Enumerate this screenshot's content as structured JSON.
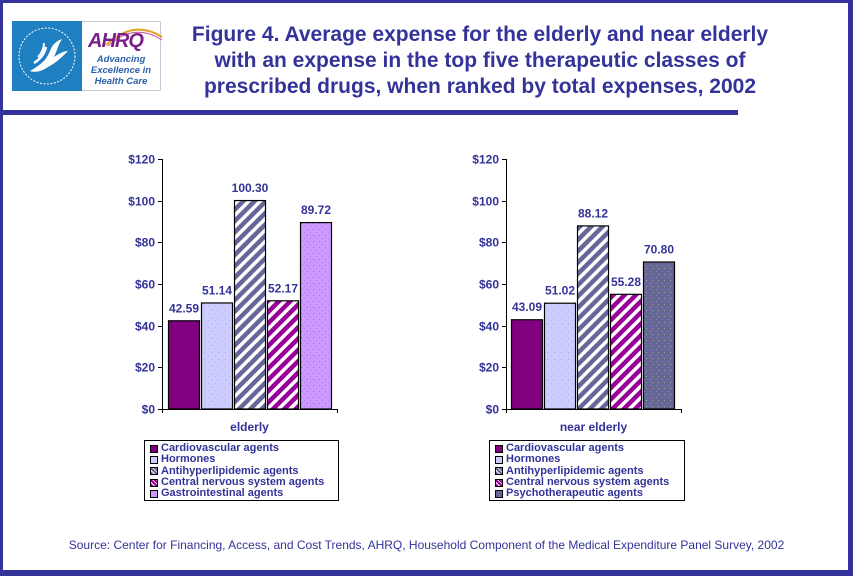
{
  "header": {
    "logo": {
      "hhs_seal": "HHS eagle seal",
      "ahrq_mark": "AHRQ",
      "ahrq_tagline": [
        "Advancing",
        "Excellence in",
        "Health Care"
      ]
    },
    "title_lines": [
      "Figure 4. Average expense for the elderly and near elderly",
      "with an expense in the top five therapeutic classes of",
      "prescribed drugs, when ranked by total expenses, 2002"
    ]
  },
  "colors": {
    "frame": "#333399",
    "text": "#333399",
    "cardiovascular": "#800080",
    "hormones": "#CCCCFF",
    "antihyperlipidemic": "#666699",
    "cns": "#990099",
    "gastrointestinal": "#CC99FF",
    "psychotherapeutic": "#666699"
  },
  "chart_data": [
    {
      "type": "bar",
      "title": "",
      "xlabel": "",
      "ylabel": "",
      "categories": [
        "elderly"
      ],
      "ylim": [
        0,
        120
      ],
      "yticks": [
        0,
        20,
        40,
        60,
        80,
        100,
        120
      ],
      "ytick_labels": [
        "$0",
        "$20",
        "$40",
        "$60",
        "$80",
        "$100",
        "$120"
      ],
      "legend_position": "bottom",
      "series": [
        {
          "name": "Cardiovascular agents",
          "values": [
            42.59
          ],
          "label": "42.59",
          "color": "#800080",
          "pattern": "solid"
        },
        {
          "name": "Hormones",
          "values": [
            51.14
          ],
          "label": "51.14",
          "color": "#CCCCFF",
          "pattern": "dots"
        },
        {
          "name": "Antihyperlipidemic agents",
          "values": [
            100.3
          ],
          "label": "100.30",
          "color": "#666699",
          "pattern": "stripes"
        },
        {
          "name": "Central nervous system agents",
          "values": [
            52.17
          ],
          "label": "52.17",
          "color": "#990099",
          "pattern": "stripes"
        },
        {
          "name": "Gastrointestinal agents",
          "values": [
            89.72
          ],
          "label": "89.72",
          "color": "#CC99FF",
          "pattern": "dots"
        }
      ]
    },
    {
      "type": "bar",
      "title": "",
      "xlabel": "",
      "ylabel": "",
      "categories": [
        "near elderly"
      ],
      "ylim": [
        0,
        120
      ],
      "yticks": [
        0,
        20,
        40,
        60,
        80,
        100,
        120
      ],
      "ytick_labels": [
        "$0",
        "$20",
        "$40",
        "$60",
        "$80",
        "$100",
        "$120"
      ],
      "legend_position": "bottom",
      "series": [
        {
          "name": "Cardiovascular agents",
          "values": [
            43.09
          ],
          "label": "43.09",
          "color": "#800080",
          "pattern": "solid"
        },
        {
          "name": "Hormones",
          "values": [
            51.02
          ],
          "label": "51.02",
          "color": "#CCCCFF",
          "pattern": "dots"
        },
        {
          "name": "Antihyperlipidemic agents",
          "values": [
            88.12
          ],
          "label": "88.12",
          "color": "#666699",
          "pattern": "stripes"
        },
        {
          "name": "Central nervous system agents",
          "values": [
            55.28
          ],
          "label": "55.28",
          "color": "#990099",
          "pattern": "stripes"
        },
        {
          "name": "Psychotherapeutic agents",
          "values": [
            70.8
          ],
          "label": "70.80",
          "color": "#666699",
          "pattern": "dots"
        }
      ]
    }
  ],
  "footer": {
    "source": "Source: Center for Financing, Access, and Cost Trends, AHRQ, Household Component of the Medical Expenditure Panel Survey, 2002"
  }
}
